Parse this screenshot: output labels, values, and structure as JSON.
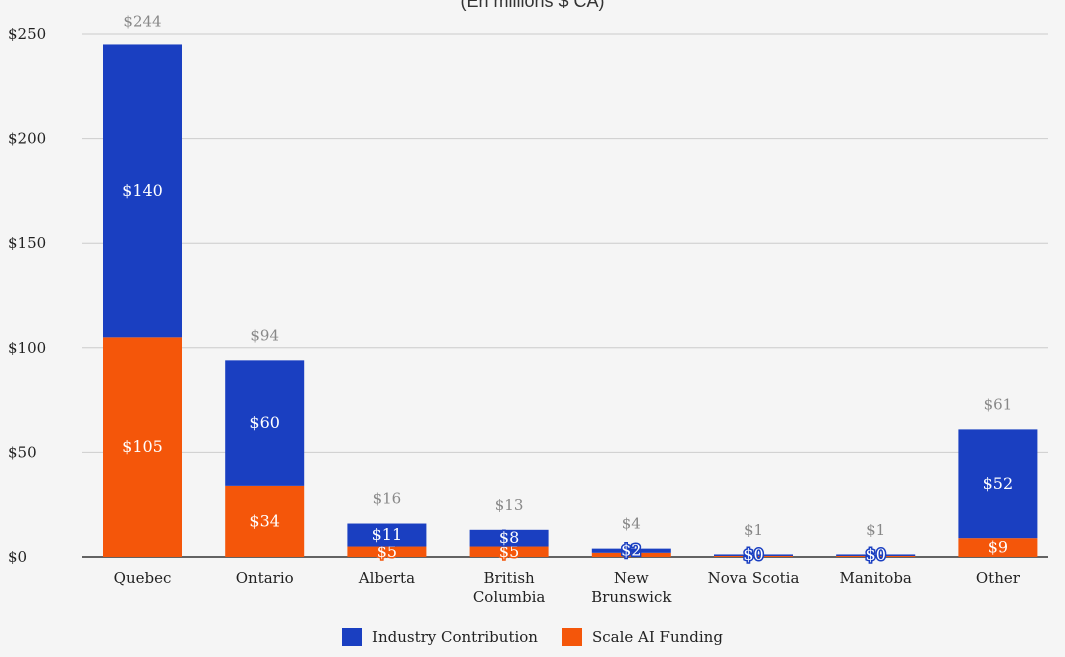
{
  "chart_data": {
    "type": "bar",
    "stacked": true,
    "subtitle": "(En millions $ CA)",
    "categories": [
      "Quebec",
      "Ontario",
      "Alberta",
      "British Columbia",
      "New Brunswick",
      "Nova Scotia",
      "Manitoba",
      "Other"
    ],
    "category_lines": [
      [
        "Quebec"
      ],
      [
        "Ontario"
      ],
      [
        "Alberta"
      ],
      [
        "British",
        "Columbia"
      ],
      [
        "New",
        "Brunswick"
      ],
      [
        "Nova Scotia"
      ],
      [
        "Manitoba"
      ],
      [
        "Other"
      ]
    ],
    "series": [
      {
        "name": "Scale AI Funding",
        "color": "#f4560a",
        "values": [
          105,
          34,
          5,
          5,
          2,
          0.5,
          0.5,
          9
        ],
        "labels": [
          "$105",
          "$34",
          "$5",
          "$5",
          "",
          "",
          "",
          "$9"
        ]
      },
      {
        "name": "Industry Contribution",
        "color": "#1a3fc1",
        "values": [
          140,
          60,
          11,
          8,
          2,
          0.5,
          0.5,
          52
        ],
        "labels": [
          "$140",
          "$60",
          "$11",
          "$8",
          "$2",
          "$0",
          "$0",
          "$52"
        ]
      }
    ],
    "totals": [
      244,
      94,
      16,
      13,
      4,
      1,
      1,
      61
    ],
    "total_labels": [
      "$244",
      "$94",
      "$16",
      "$13",
      "$4",
      "$1",
      "$1",
      "$61"
    ],
    "ylim": [
      0,
      250
    ],
    "yticks": [
      0,
      50,
      100,
      150,
      200,
      250
    ],
    "ytick_labels": [
      "$0",
      "$50",
      "$100",
      "$150",
      "$200",
      "$250"
    ],
    "grid": true,
    "legend_position": "bottom",
    "legend_order": [
      "Industry Contribution",
      "Scale AI Funding"
    ]
  }
}
